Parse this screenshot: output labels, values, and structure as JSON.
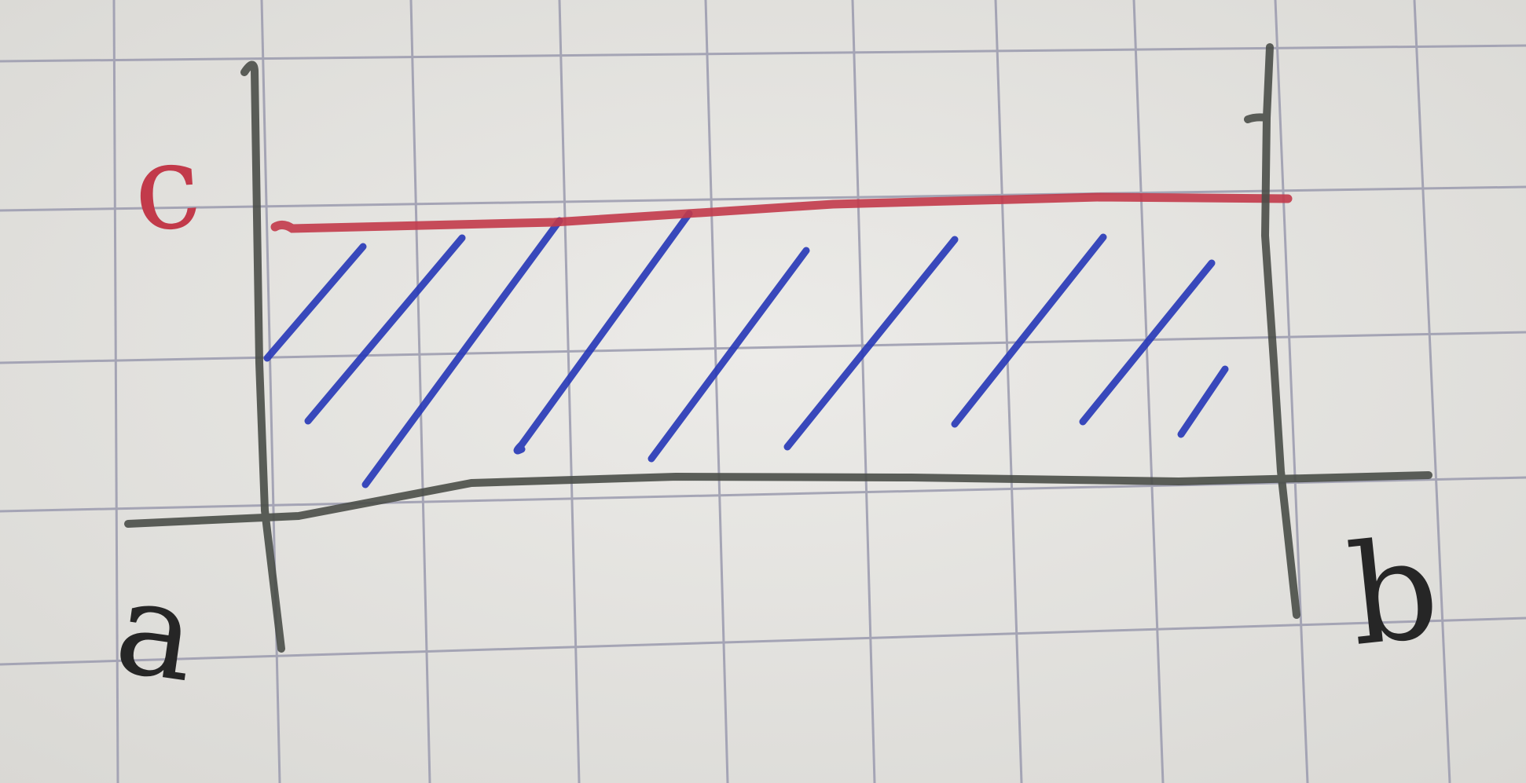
{
  "labels": {
    "a": "a",
    "b": "b",
    "c": "c"
  },
  "colors": {
    "paper": "#e4e3df",
    "grid": "#9a9aae",
    "axis_pencil": "#4a4e48",
    "bound_c": "#c23a4a",
    "hatch": "#2a3bb8",
    "letters": "#262626"
  }
}
